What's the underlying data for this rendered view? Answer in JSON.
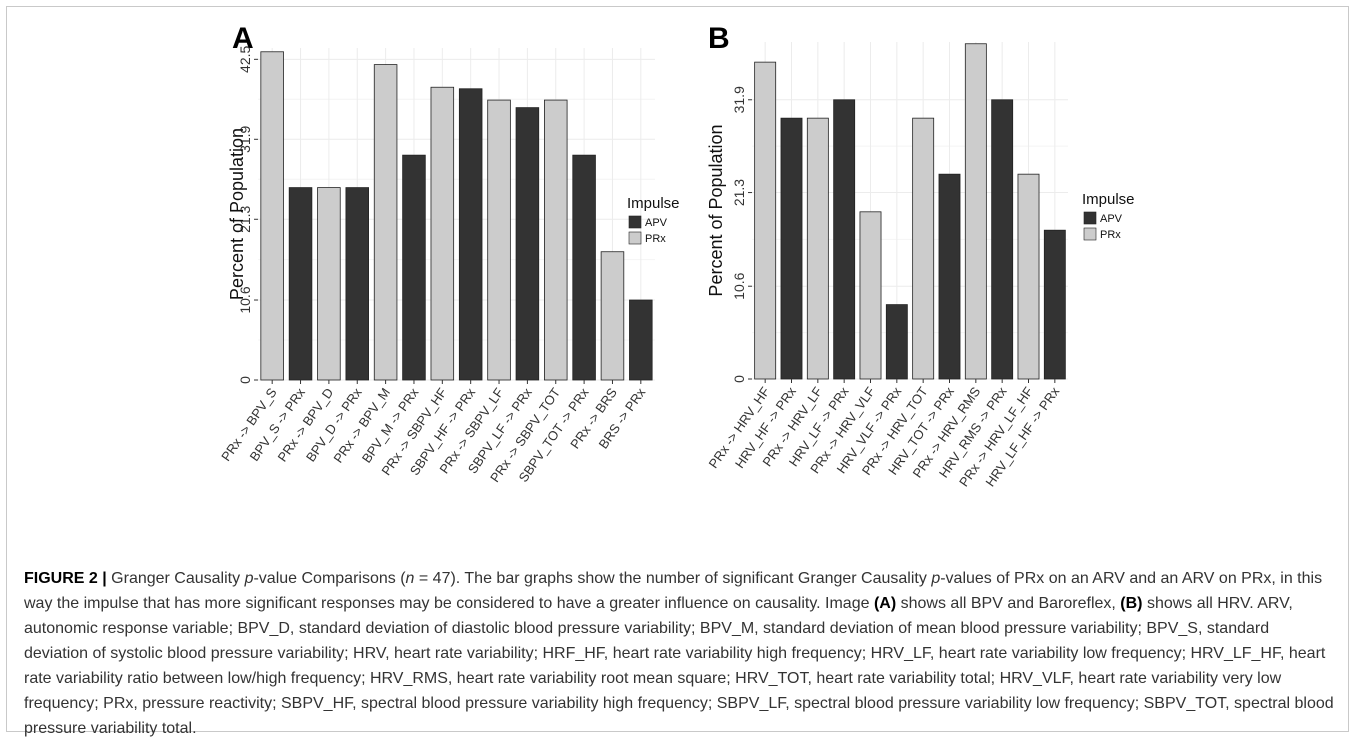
{
  "colors": {
    "APV": "#333333",
    "PRx": "#cccccc",
    "grid": "#ececec",
    "axis_text": "#333333"
  },
  "caption": {
    "label": "FIGURE 2 |",
    "t1": " Granger Causality ",
    "p1": "p",
    "t2": "-value Comparisons (",
    "n": "n",
    "t3": " = 47). The bar graphs show the number of significant Granger Causality ",
    "p2": "p",
    "t4": "-values of PRx on an ARV and an ARV on PRx, in this way the impulse that has more significant responses may be considered to have a greater influence on causality. Image ",
    "A": "(A)",
    "t5": " shows all BPV and Baroreflex, ",
    "B": "(B)",
    "t6": " shows all HRV. ARV, autonomic response variable; BPV_D, standard deviation of diastolic blood pressure variability; BPV_M, standard deviation of mean blood pressure variability; BPV_S, standard deviation of systolic blood pressure variability; HRV, heart rate variability; HRF_HF, heart rate variability high frequency; HRV_LF, heart rate variability low frequency; HRV_LF_HF, heart rate variability ratio between low/high frequency; HRV_RMS, heart rate variability root mean square; HRV_TOT, heart rate variability total; HRV_VLF, heart rate variability very low frequency; PRx, pressure reactivity; SBPV_HF, spectral blood pressure variability high frequency; SBPV_LF, spectral blood pressure variability low frequency; SBPV_TOT, spectral blood pressure variability total."
  },
  "chart_data": [
    {
      "panel": "A",
      "type": "bar",
      "ylabel": "Percent of Population",
      "ylim": [
        0,
        44
      ],
      "yticks": [
        "0",
        "10.6",
        "21.3",
        "31.9",
        "42.5"
      ],
      "ytick_values": [
        0,
        10.6,
        21.3,
        31.9,
        42.5
      ],
      "legend": {
        "title": "Impulse",
        "entries": [
          "APV",
          "PRx"
        ],
        "position": "right"
      },
      "categories": [
        "PRx -> BPV_S",
        "BPV_S -> PRx",
        "PRx -> BPV_D",
        "BPV_D -> PRx",
        "PRx -> BPV_M",
        "BPV_M -> PRx",
        "PRx -> SBPV_HF",
        "SBPV_HF -> PRx",
        "PRx -> SBPV_LF",
        "SBPV_LF -> PRx",
        "PRx -> SBPV_TOT",
        "SBPV_TOT -> PRx",
        "PRx -> BRS",
        "BRS -> PRx"
      ],
      "impulse": [
        "PRx",
        "APV",
        "PRx",
        "APV",
        "PRx",
        "APV",
        "PRx",
        "APV",
        "PRx",
        "APV",
        "PRx",
        "APV",
        "PRx",
        "APV"
      ],
      "values": [
        43.5,
        25.5,
        25.5,
        25.5,
        41.8,
        29.8,
        38.8,
        38.6,
        37.1,
        36.1,
        37.1,
        29.8,
        17.0,
        10.6
      ],
      "grid": true
    },
    {
      "panel": "B",
      "type": "bar",
      "ylabel": "Percent of Population",
      "ylim": [
        0,
        38.5
      ],
      "yticks": [
        "0",
        "10.6",
        "21.3",
        "31.9"
      ],
      "ytick_values": [
        0,
        10.6,
        21.3,
        31.9
      ],
      "legend": {
        "title": "Impulse",
        "entries": [
          "APV",
          "PRx"
        ],
        "position": "right"
      },
      "categories": [
        "PRx -> HRV_HF",
        "HRV_HF -> PRx",
        "PRx -> HRV_LF",
        "HRV_LF -> PRx",
        "PRx -> HRV_VLF",
        "HRV_VLF -> PRx",
        "PRx -> HRV_TOT",
        "HRV_TOT -> PRx",
        "PRx -> HRV_RMS",
        "HRV_RMS -> PRx",
        "PRx -> HRV_LF_HF",
        "HRV_LF_HF -> PRx"
      ],
      "impulse": [
        "PRx",
        "APV",
        "PRx",
        "APV",
        "PRx",
        "APV",
        "PRx",
        "APV",
        "PRx",
        "APV",
        "PRx",
        "APV"
      ],
      "values": [
        36.2,
        29.8,
        29.8,
        31.9,
        19.1,
        8.5,
        29.8,
        23.4,
        38.3,
        31.9,
        23.4,
        17.0
      ],
      "grid": true
    }
  ]
}
